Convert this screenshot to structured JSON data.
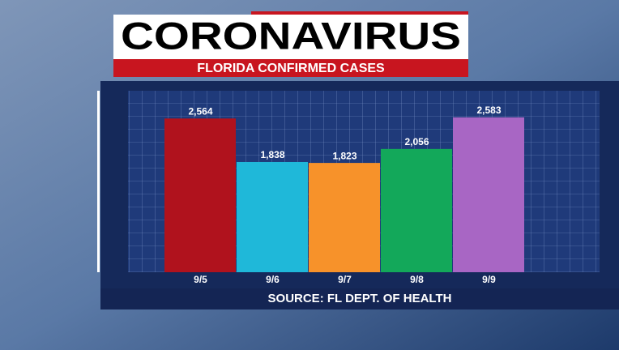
{
  "chart_data": {
    "type": "bar",
    "title": "CORONAVIRUS",
    "subtitle": "FLORIDA CONFIRMED CASES",
    "source": "SOURCE: FL DEPT. OF HEALTH",
    "categories": [
      "9/5",
      "9/6",
      "9/7",
      "9/8",
      "9/9"
    ],
    "values": [
      2564,
      1838,
      1823,
      2056,
      2583
    ],
    "value_labels": [
      "2,564",
      "1,838",
      "1,823",
      "2,056",
      "2,583"
    ],
    "colors": [
      "#b0121d",
      "#1fb8d9",
      "#f7922a",
      "#13a85a",
      "#a866c4"
    ],
    "ylim": [
      0,
      3000
    ]
  }
}
